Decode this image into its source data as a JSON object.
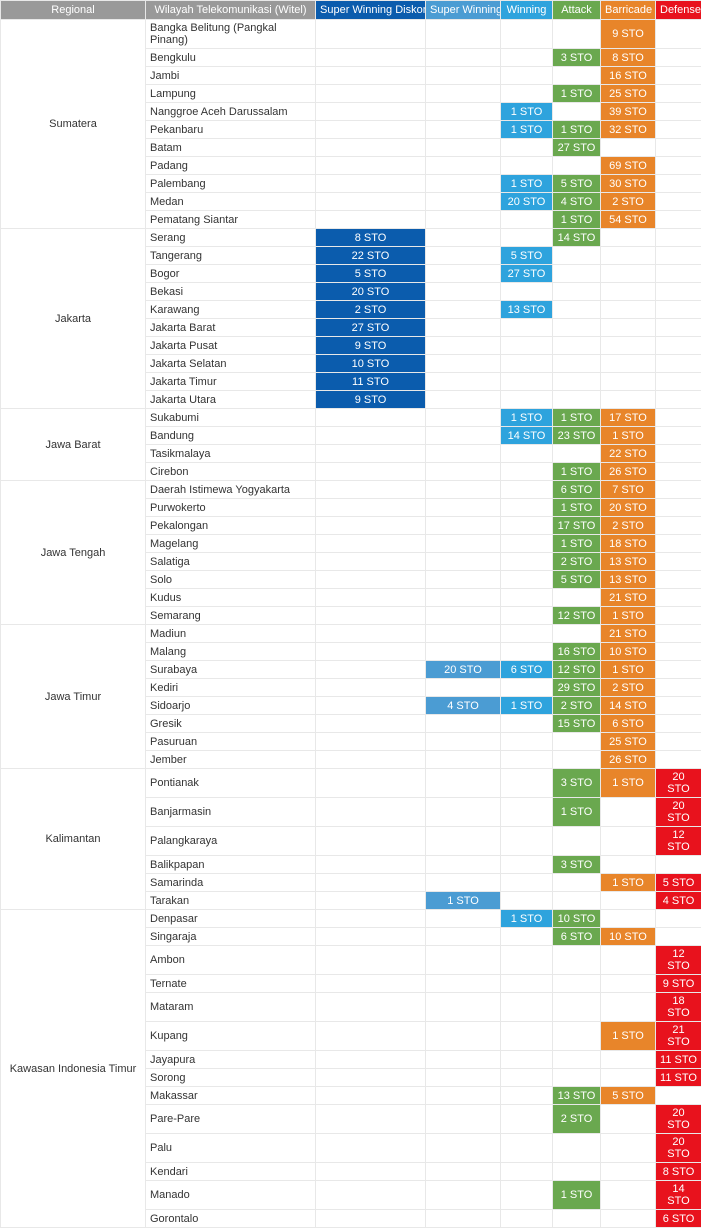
{
  "colors": {
    "header_bg": "#999999",
    "swd": "#0b5cad",
    "sw": "#4b9cd3",
    "win": "#2ea3dd",
    "att": "#6aa84f",
    "bar": "#e8852a",
    "def": "#e8121d",
    "border": "#e8e8e8"
  },
  "headers": {
    "regional": "Regional",
    "witel": "Wilayah Telekomunikasi (Witel)",
    "swd": "Super Winning Diskon",
    "sw": "Super Winning",
    "win": "Winning",
    "att": "Attack",
    "bar": "Barricade",
    "def": "Defense"
  },
  "regions": [
    {
      "name": "Sumatera",
      "rows": [
        {
          "witel": "Bangka Belitung (Pangkal Pinang)",
          "bar": "9 STO"
        },
        {
          "witel": "Bengkulu",
          "att": "3 STO",
          "bar": "8 STO"
        },
        {
          "witel": "Jambi",
          "bar": "16 STO"
        },
        {
          "witel": "Lampung",
          "att": "1 STO",
          "bar": "25 STO"
        },
        {
          "witel": "Nanggroe Aceh Darussalam",
          "win": "1 STO",
          "bar": "39 STO"
        },
        {
          "witel": "Pekanbaru",
          "win": "1 STO",
          "att": "1 STO",
          "bar": "32 STO"
        },
        {
          "witel": "Batam",
          "att": "27 STO"
        },
        {
          "witel": "Padang",
          "bar": "69 STO"
        },
        {
          "witel": "Palembang",
          "win": "1 STO",
          "att": "5 STO",
          "bar": "30 STO"
        },
        {
          "witel": "Medan",
          "win": "20 STO",
          "att": "4 STO",
          "bar": "2 STO"
        },
        {
          "witel": "Pematang Siantar",
          "att": "1 STO",
          "bar": "54 STO"
        }
      ]
    },
    {
      "name": "Jakarta",
      "rows": [
        {
          "witel": "Serang",
          "swd": "8 STO",
          "att": "14 STO"
        },
        {
          "witel": "Tangerang",
          "swd": "22 STO",
          "win": "5 STO"
        },
        {
          "witel": "Bogor",
          "swd": "5 STO",
          "win": "27 STO"
        },
        {
          "witel": "Bekasi",
          "swd": "20 STO"
        },
        {
          "witel": "Karawang",
          "swd": "2 STO",
          "win": "13 STO"
        },
        {
          "witel": "Jakarta Barat",
          "swd": "27 STO"
        },
        {
          "witel": "Jakarta Pusat",
          "swd": "9 STO"
        },
        {
          "witel": "Jakarta Selatan",
          "swd": "10 STO"
        },
        {
          "witel": "Jakarta Timur",
          "swd": "11 STO"
        },
        {
          "witel": "Jakarta Utara",
          "swd": "9 STO"
        }
      ]
    },
    {
      "name": "Jawa Barat",
      "rows": [
        {
          "witel": "Sukabumi",
          "win": "1 STO",
          "att": "1 STO",
          "bar": "17 STO"
        },
        {
          "witel": "Bandung",
          "win": "14 STO",
          "att": "23 STO",
          "bar": "1 STO"
        },
        {
          "witel": "Tasikmalaya",
          "bar": "22 STO"
        },
        {
          "witel": "Cirebon",
          "att": "1 STO",
          "bar": "26 STO"
        }
      ]
    },
    {
      "name": "Jawa Tengah",
      "rows": [
        {
          "witel": "Daerah Istimewa Yogyakarta",
          "att": "6 STO",
          "bar": "7 STO"
        },
        {
          "witel": "Purwokerto",
          "att": "1 STO",
          "bar": "20 STO"
        },
        {
          "witel": "Pekalongan",
          "att": "17 STO",
          "bar": "2 STO"
        },
        {
          "witel": "Magelang",
          "att": "1 STO",
          "bar": "18 STO"
        },
        {
          "witel": "Salatiga",
          "att": "2 STO",
          "bar": "13 STO"
        },
        {
          "witel": "Solo",
          "att": "5 STO",
          "bar": "13 STO"
        },
        {
          "witel": "Kudus",
          "bar": "21 STO"
        },
        {
          "witel": "Semarang",
          "att": "12 STO",
          "bar": "1 STO"
        }
      ]
    },
    {
      "name": "Jawa Timur",
      "rows": [
        {
          "witel": "Madiun",
          "bar": "21 STO"
        },
        {
          "witel": "Malang",
          "att": "16 STO",
          "bar": "10 STO"
        },
        {
          "witel": "Surabaya",
          "sw": "20 STO",
          "win": "6 STO",
          "att": "12 STO",
          "bar": "1 STO"
        },
        {
          "witel": "Kediri",
          "att": "29 STO",
          "bar": "2 STO"
        },
        {
          "witel": "Sidoarjo",
          "sw": "4 STO",
          "win": "1 STO",
          "att": "2 STO",
          "bar": "14 STO"
        },
        {
          "witel": "Gresik",
          "att": "15 STO",
          "bar": "6 STO"
        },
        {
          "witel": "Pasuruan",
          "bar": "25 STO"
        },
        {
          "witel": "Jember",
          "bar": "26 STO"
        }
      ]
    },
    {
      "name": "Kalimantan",
      "rows": [
        {
          "witel": "Pontianak",
          "att": "3 STO",
          "bar": "1 STO",
          "def": "20 STO"
        },
        {
          "witel": "Banjarmasin",
          "att": "1 STO",
          "def": "20 STO"
        },
        {
          "witel": "Palangkaraya",
          "def": "12 STO"
        },
        {
          "witel": "Balikpapan",
          "att": "3 STO"
        },
        {
          "witel": "Samarinda",
          "bar": "1 STO",
          "def": "5 STO"
        },
        {
          "witel": "Tarakan",
          "sw": "1 STO",
          "def": "4 STO"
        }
      ]
    },
    {
      "name": "Kawasan Indonesia Timur",
      "rows": [
        {
          "witel": "Denpasar",
          "win": "1 STO",
          "att": "10 STO"
        },
        {
          "witel": "Singaraja",
          "att": "6 STO",
          "bar": "10 STO"
        },
        {
          "witel": "Ambon",
          "def": "12 STO"
        },
        {
          "witel": "Ternate",
          "def": "9 STO"
        },
        {
          "witel": "Mataram",
          "def": "18 STO"
        },
        {
          "witel": "Kupang",
          "bar": "1 STO",
          "def": "21 STO"
        },
        {
          "witel": "Jayapura",
          "def": "11 STO"
        },
        {
          "witel": "Sorong",
          "def": "11 STO"
        },
        {
          "witel": "Makassar",
          "att": "13 STO",
          "bar": "5 STO"
        },
        {
          "witel": "Pare-Pare",
          "att": "2 STO",
          "def": "20 STO"
        },
        {
          "witel": "Palu",
          "def": "20 STO"
        },
        {
          "witel": "Kendari",
          "def": "8 STO"
        },
        {
          "witel": "Manado",
          "att": "1 STO",
          "def": "14 STO"
        },
        {
          "witel": "Gorontalo",
          "def": "6 STO"
        }
      ]
    }
  ]
}
